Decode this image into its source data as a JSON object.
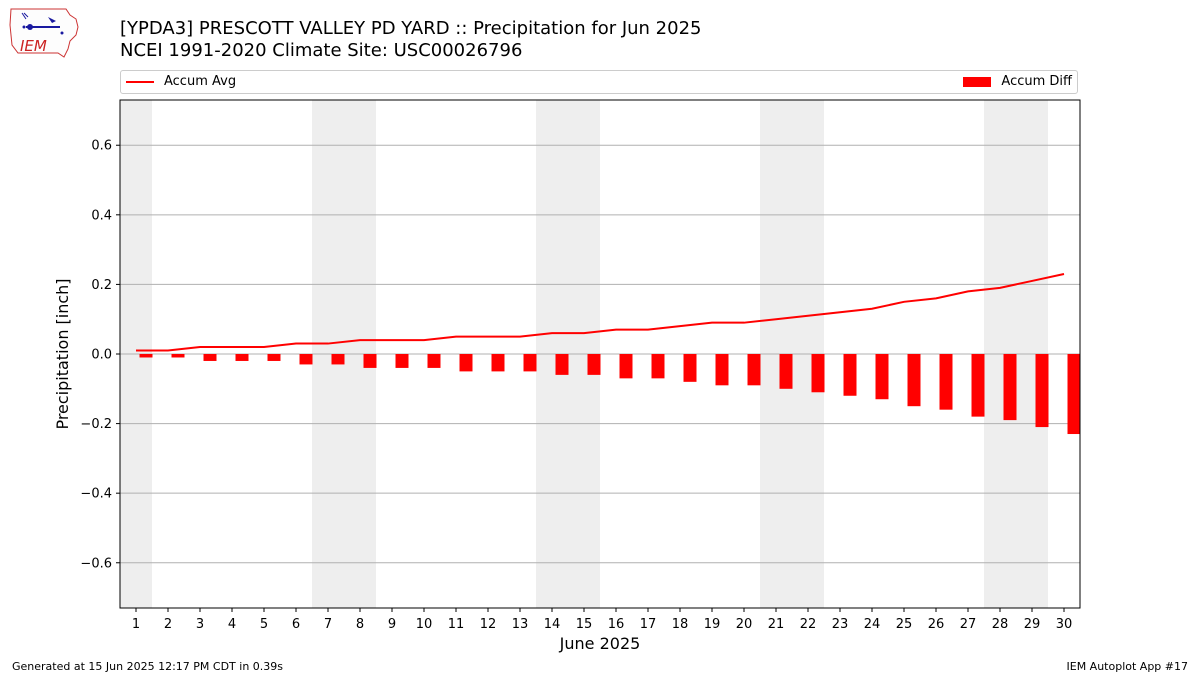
{
  "logo": {
    "text": "IEM"
  },
  "header": {
    "title_line1": "[YPDA3] PRESCOTT VALLEY PD YARD :: Precipitation for Jun 2025",
    "title_line2": "NCEI 1991-2020 Climate Site: USC00026796"
  },
  "legend": {
    "avg_label": "Accum Avg",
    "diff_label": "Accum Diff"
  },
  "colors": {
    "avg_line": "#ff0000",
    "diff_bar": "#ff0000",
    "weekend_shade": "#eeeeee",
    "grid": "#b0b0b0"
  },
  "footer": {
    "generated": "Generated at 15 Jun 2025 12:17 PM CDT in 0.39s",
    "app": "IEM Autoplot App #17"
  },
  "chart_data": {
    "type": "bar",
    "xlabel": "June 2025",
    "ylabel": "Precipitation [inch]",
    "x": [
      1,
      2,
      3,
      4,
      5,
      6,
      7,
      8,
      9,
      10,
      11,
      12,
      13,
      14,
      15,
      16,
      17,
      18,
      19,
      20,
      21,
      22,
      23,
      24,
      25,
      26,
      27,
      28,
      29,
      30
    ],
    "ylim": [
      -0.73,
      0.73
    ],
    "yticks": [
      -0.6,
      -0.4,
      -0.2,
      0.0,
      0.2,
      0.4,
      0.6
    ],
    "ytick_labels": [
      "−0.6",
      "−0.4",
      "−0.2",
      "0.0",
      "0.2",
      "0.4",
      "0.6"
    ],
    "grid": "horizontal",
    "legend_placement": "top, above plot",
    "weekend_shaded_days": [
      1,
      7,
      8,
      14,
      15,
      21,
      22,
      28,
      29
    ],
    "series": [
      {
        "name": "Accum Avg",
        "kind": "line",
        "values": [
          0.01,
          0.01,
          0.02,
          0.02,
          0.02,
          0.03,
          0.03,
          0.04,
          0.04,
          0.04,
          0.05,
          0.05,
          0.05,
          0.06,
          0.06,
          0.07,
          0.07,
          0.08,
          0.09,
          0.09,
          0.1,
          0.11,
          0.12,
          0.13,
          0.15,
          0.16,
          0.18,
          0.19,
          0.21,
          0.23
        ]
      },
      {
        "name": "Accum Diff",
        "kind": "bar",
        "values": [
          -0.01,
          -0.01,
          -0.02,
          -0.02,
          -0.02,
          -0.03,
          -0.03,
          -0.04,
          -0.04,
          -0.04,
          -0.05,
          -0.05,
          -0.05,
          -0.06,
          -0.06,
          -0.07,
          -0.07,
          -0.08,
          -0.09,
          -0.09,
          -0.1,
          -0.11,
          -0.12,
          -0.13,
          -0.15,
          -0.16,
          -0.18,
          -0.19,
          -0.21,
          -0.23
        ]
      }
    ]
  }
}
